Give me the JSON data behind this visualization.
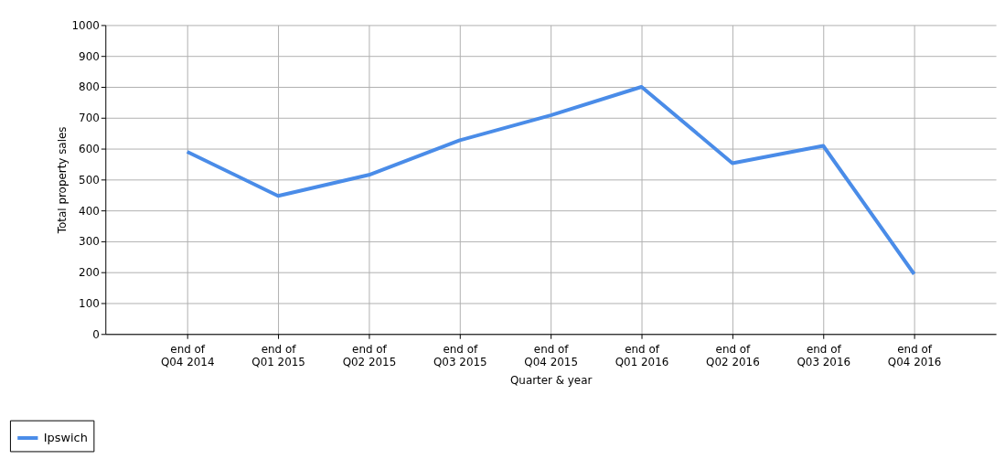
{
  "chart_data": {
    "type": "line",
    "xlabel": "Quarter & year",
    "ylabel": "Total property sales",
    "categories": [
      "end of\nQ04 2014",
      "end of\nQ01 2015",
      "end of\nQ02 2015",
      "end of\nQ03 2015",
      "end of\nQ04 2015",
      "end of\nQ01 2016",
      "end of\nQ02 2016",
      "end of\nQ03 2016",
      "end of\nQ04 2016"
    ],
    "series": [
      {
        "name": "Ipswich",
        "color": "#4a8ce8",
        "values": [
          590,
          447,
          515,
          627,
          708,
          800,
          553,
          609,
          194
        ]
      }
    ],
    "ylim": [
      0,
      1000
    ],
    "yticks": [
      0,
      100,
      200,
      300,
      400,
      500,
      600,
      700,
      800,
      900,
      1000
    ],
    "grid": true,
    "legend": "bottom left",
    "marker": "none",
    "line_style": "solid"
  }
}
